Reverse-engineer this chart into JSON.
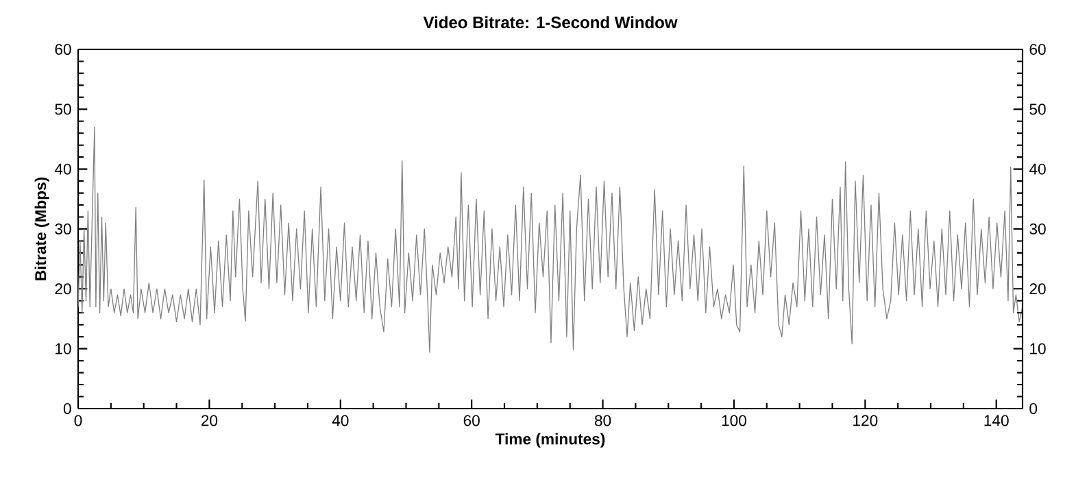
{
  "chart_data": {
    "type": "line",
    "title": "Video Bitrate: 1-Second Window",
    "xlabel": "Time (minutes)",
    "ylabel": "Bitrate (Mbps)",
    "color": "#808080",
    "xlim": [
      0,
      144
    ],
    "xticks": [
      0,
      20,
      40,
      60,
      80,
      100,
      120,
      140
    ],
    "ylim": [
      0,
      60
    ],
    "yticks": [
      0,
      10,
      20,
      30,
      40,
      50,
      60
    ],
    "y2lim": [
      0,
      60
    ],
    "y2ticks": [
      0,
      10,
      20,
      30,
      40,
      50,
      60
    ],
    "grid": false,
    "x": [
      0,
      0.3,
      0.6,
      0.9,
      1.2,
      1.5,
      1.8,
      2.1,
      2.5,
      2.7,
      3.0,
      3.3,
      3.6,
      3.9,
      4.2,
      4.6,
      5.0,
      5.5,
      6.0,
      6.5,
      7.0,
      7.5,
      8.0,
      8.4,
      8.8,
      9.1,
      9.6,
      10.2,
      10.8,
      11.4,
      12.0,
      12.6,
      13.2,
      13.8,
      14.4,
      15.0,
      15.6,
      16.2,
      16.8,
      17.4,
      18.0,
      18.6,
      19.2,
      19.6,
      20.2,
      20.8,
      21.4,
      22.0,
      22.6,
      23.2,
      23.6,
      24.0,
      24.6,
      25.1,
      25.5,
      26.0,
      26.6,
      27.4,
      27.9,
      28.5,
      29.1,
      29.7,
      30.3,
      30.9,
      31.5,
      32.1,
      32.7,
      33.3,
      33.9,
      34.5,
      35.1,
      35.7,
      36.3,
      37.0,
      37.6,
      38.2,
      38.8,
      39.4,
      40.0,
      40.6,
      41.2,
      41.8,
      42.4,
      43.0,
      43.6,
      44.2,
      44.8,
      45.4,
      46.0,
      46.6,
      47.2,
      47.8,
      48.4,
      49.0,
      49.4,
      49.8,
      50.4,
      51.0,
      51.6,
      52.2,
      52.8,
      53.3,
      53.6,
      54.0,
      54.6,
      55.2,
      55.8,
      56.4,
      57.0,
      57.6,
      58.0,
      58.4,
      58.9,
      59.5,
      60.1,
      60.7,
      61.3,
      61.9,
      62.5,
      63.1,
      63.7,
      64.3,
      64.9,
      65.5,
      66.1,
      66.7,
      67.3,
      67.9,
      68.5,
      69.1,
      69.7,
      70.3,
      70.9,
      71.5,
      72.1,
      72.7,
      73.3,
      73.9,
      74.5,
      75.0,
      75.5,
      76.0,
      76.6,
      77.2,
      77.8,
      78.4,
      79.0,
      79.6,
      80.2,
      80.8,
      81.4,
      82.0,
      82.6,
      83.2,
      83.7,
      84.2,
      84.8,
      85.4,
      86.0,
      86.6,
      87.2,
      87.9,
      88.5,
      89.1,
      89.7,
      90.3,
      90.9,
      91.5,
      92.1,
      92.7,
      93.3,
      93.9,
      94.5,
      95.1,
      95.7,
      96.3,
      96.9,
      97.5,
      98.1,
      98.7,
      99.3,
      99.9,
      100.4,
      100.9,
      101.5,
      102.0,
      102.6,
      103.2,
      103.8,
      104.4,
      105.0,
      105.6,
      106.2,
      106.8,
      107.3,
      107.8,
      108.4,
      109.0,
      109.6,
      110.2,
      110.8,
      111.4,
      112.0,
      112.6,
      113.2,
      113.8,
      114.4,
      115.0,
      115.6,
      116.2,
      116.6,
      117.0,
      117.5,
      118.0,
      118.5,
      119.1,
      119.7,
      120.3,
      120.9,
      121.5,
      122.1,
      122.7,
      123.3,
      123.9,
      124.5,
      125.1,
      125.7,
      126.3,
      126.9,
      127.5,
      128.1,
      128.7,
      129.3,
      129.9,
      130.5,
      131.1,
      131.7,
      132.3,
      132.9,
      133.5,
      134.1,
      134.7,
      135.3,
      135.9,
      136.5,
      137.1,
      137.7,
      138.3,
      138.9,
      139.5,
      140.1,
      140.7,
      141.3,
      141.8,
      142.2,
      142.6,
      143.0,
      143.5,
      144
    ],
    "values": [
      17,
      28,
      16,
      30,
      18,
      33,
      17,
      30,
      47,
      17,
      36,
      16,
      32,
      18,
      31,
      17,
      20,
      16,
      19,
      15.5,
      20,
      16,
      19,
      16,
      33.6,
      15,
      20,
      16,
      21,
      16,
      20,
      15,
      20,
      16,
      19,
      14.5,
      19,
      15,
      20,
      14.5,
      20,
      14,
      38.2,
      15,
      27,
      16,
      28,
      17,
      29,
      18,
      33,
      22,
      35,
      20,
      14.6,
      33,
      22,
      38,
      21,
      35,
      20,
      36,
      21,
      34,
      19,
      31,
      18,
      30,
      20,
      33,
      16,
      30,
      17,
      37,
      18,
      30,
      15,
      27,
      18,
      31,
      17,
      27,
      18,
      29,
      16,
      28,
      15,
      26,
      17,
      12.8,
      25,
      17,
      30,
      17,
      41.4,
      16,
      26,
      18,
      29,
      19,
      30,
      18,
      9.4,
      24,
      19,
      26,
      21,
      27,
      22,
      32,
      20,
      39.4,
      18,
      34,
      17,
      35,
      19,
      33,
      15,
      30,
      18,
      27,
      17,
      29,
      19,
      34,
      18,
      37,
      20,
      36,
      16,
      31,
      22,
      33,
      11,
      34,
      18,
      36,
      12,
      33,
      9.8,
      30,
      39,
      18,
      35,
      20,
      37,
      21,
      38,
      22,
      36,
      20,
      37,
      20,
      12,
      21,
      13,
      22,
      14,
      20,
      15,
      36.6,
      19,
      33,
      17,
      30,
      19,
      28,
      18,
      34,
      20,
      29,
      18,
      30,
      16,
      27,
      17,
      20,
      15,
      19,
      16,
      24,
      14,
      12.8,
      40.5,
      17,
      24,
      16,
      28,
      19,
      33,
      22,
      31,
      14,
      12,
      19,
      14,
      21,
      17,
      33,
      18,
      30,
      17,
      32,
      19,
      29,
      15,
      35,
      20,
      37,
      18,
      41.2,
      20,
      10.8,
      38,
      21,
      39,
      18,
      34,
      17,
      36,
      20,
      15,
      18,
      31,
      19,
      29,
      18,
      33,
      19,
      30,
      17,
      33,
      20,
      28,
      17,
      30,
      19,
      33,
      18,
      29,
      20,
      31,
      17,
      35,
      19,
      30,
      21,
      32,
      20,
      31,
      22,
      33,
      18,
      40.3,
      16,
      19,
      14.5,
      17
    ]
  }
}
